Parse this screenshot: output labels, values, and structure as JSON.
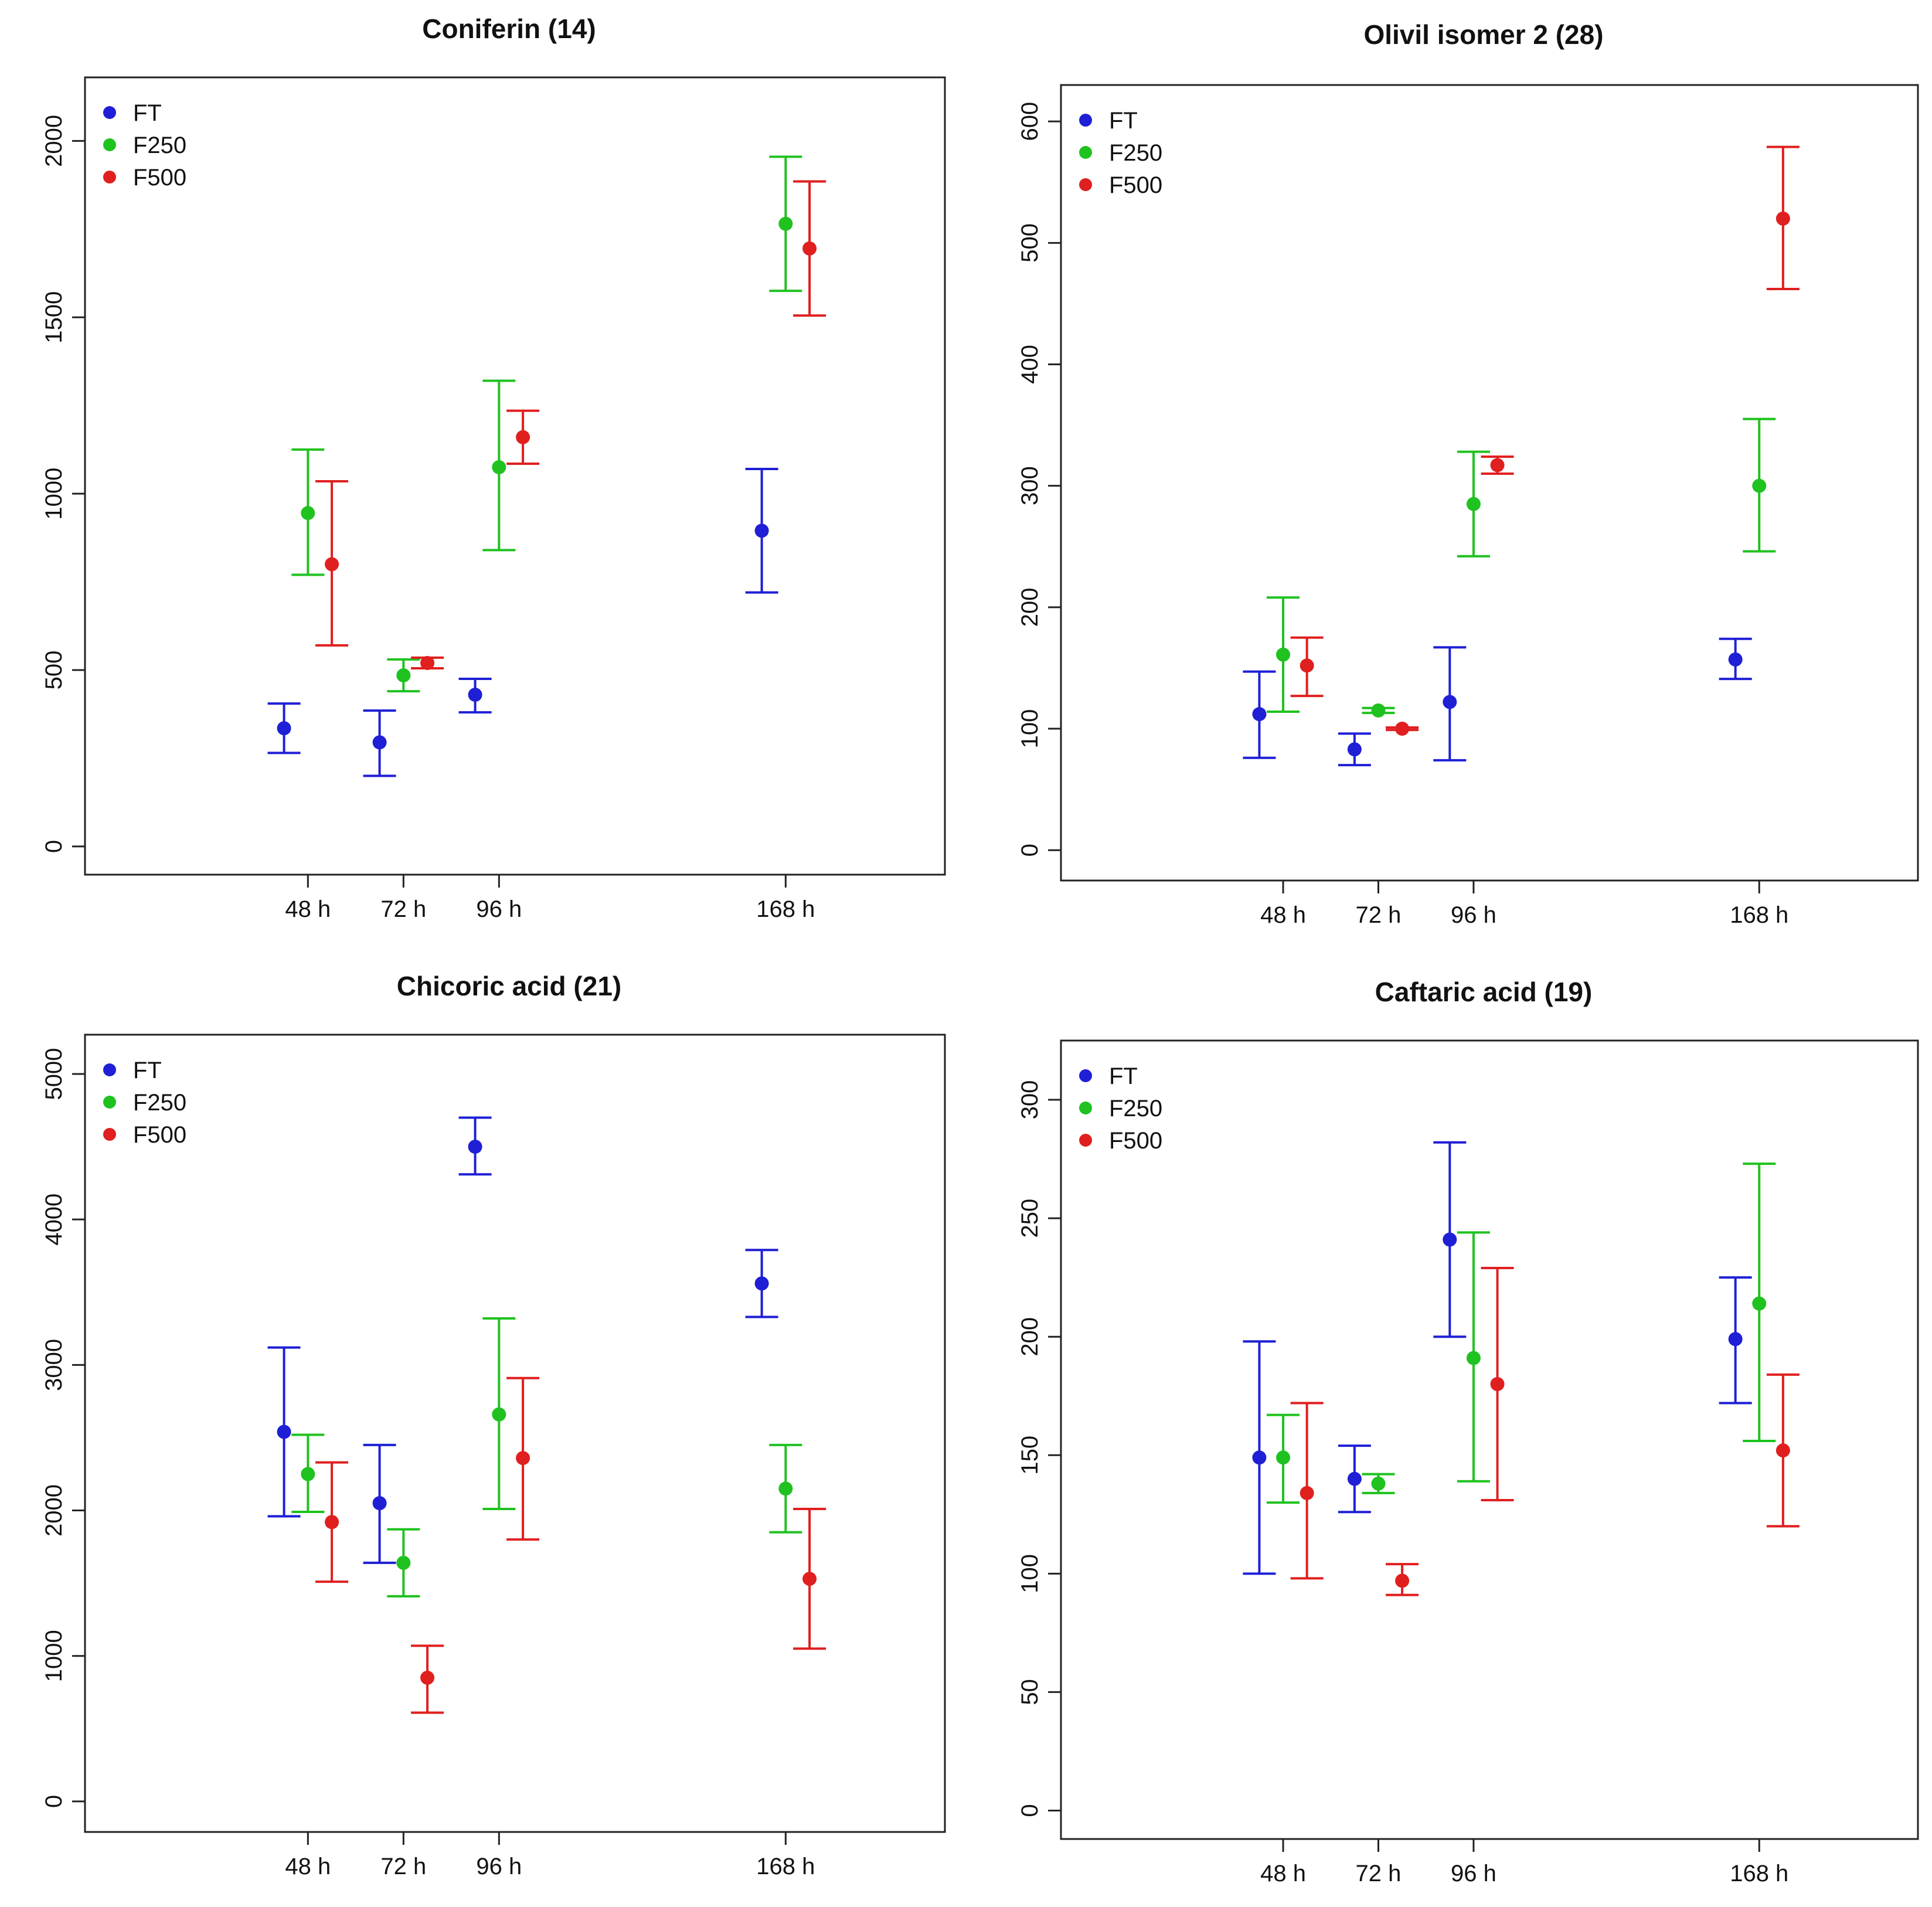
{
  "colors": {
    "FT": "#1f1fd6",
    "F250": "#1fc21f",
    "F500": "#e01f1f"
  },
  "chart_data": [
    {
      "type": "scatter",
      "title": "Coniferin (14)",
      "xlabel": "",
      "ylabel": "",
      "categories": [
        "48 h",
        "72 h",
        "96 h",
        "168 h"
      ],
      "x": [
        48,
        72,
        96,
        168
      ],
      "xlim": [
        -8,
        208
      ],
      "ylim": [
        -80,
        2180
      ],
      "yticks": [
        0,
        500,
        1000,
        1500,
        2000
      ],
      "legend": {
        "position": "top-left",
        "entries": [
          "FT",
          "F250",
          "F500"
        ]
      },
      "series": [
        {
          "name": "FT",
          "color": "#1f1fd6",
          "offset": -6,
          "values": [
            335,
            295,
            430,
            895
          ],
          "lower": [
            265,
            200,
            380,
            720
          ],
          "upper": [
            405,
            385,
            475,
            1070
          ]
        },
        {
          "name": "F250",
          "color": "#1fc21f",
          "offset": 0,
          "values": [
            945,
            485,
            1075,
            1765
          ],
          "lower": [
            770,
            440,
            840,
            1575
          ],
          "upper": [
            1125,
            530,
            1320,
            1955
          ]
        },
        {
          "name": "F500",
          "color": "#e01f1f",
          "offset": 6,
          "values": [
            800,
            520,
            1160,
            1695
          ],
          "lower": [
            570,
            505,
            1085,
            1505
          ],
          "upper": [
            1035,
            535,
            1235,
            1885
          ]
        }
      ]
    },
    {
      "type": "scatter",
      "title": "Olivil isomer 2 (28)",
      "xlabel": "",
      "ylabel": "",
      "categories": [
        "48 h",
        "72 h",
        "96 h",
        "168 h"
      ],
      "x": [
        48,
        72,
        96,
        168
      ],
      "xlim": [
        -8,
        208
      ],
      "ylim": [
        -25,
        630
      ],
      "yticks": [
        0,
        100,
        200,
        300,
        400,
        500,
        600
      ],
      "legend": {
        "position": "top-left",
        "entries": [
          "FT",
          "F250",
          "F500"
        ]
      },
      "series": [
        {
          "name": "FT",
          "color": "#1f1fd6",
          "offset": -6,
          "values": [
            112,
            83,
            122,
            157
          ],
          "lower": [
            76,
            70,
            74,
            141
          ],
          "upper": [
            147,
            96,
            167,
            174
          ]
        },
        {
          "name": "F250",
          "color": "#1fc21f",
          "offset": 0,
          "values": [
            161,
            115,
            285,
            300
          ],
          "lower": [
            114,
            113,
            242,
            246
          ],
          "upper": [
            208,
            117,
            328,
            355
          ]
        },
        {
          "name": "F500",
          "color": "#e01f1f",
          "offset": 6,
          "values": [
            152,
            100,
            317,
            520
          ],
          "lower": [
            127,
            99,
            310,
            462
          ],
          "upper": [
            175,
            101,
            324,
            579
          ]
        }
      ]
    },
    {
      "type": "scatter",
      "title": "Chicoric acid (21)",
      "xlabel": "",
      "ylabel": "",
      "categories": [
        "48 h",
        "72 h",
        "96 h",
        "168 h"
      ],
      "x": [
        48,
        72,
        96,
        168
      ],
      "xlim": [
        -8,
        208
      ],
      "ylim": [
        -210,
        5270
      ],
      "yticks": [
        0,
        1000,
        2000,
        3000,
        4000,
        5000
      ],
      "legend": {
        "position": "top-left",
        "entries": [
          "FT",
          "F250",
          "F500"
        ]
      },
      "series": [
        {
          "name": "FT",
          "color": "#1f1fd6",
          "offset": -6,
          "values": [
            2540,
            2050,
            4500,
            3560
          ],
          "lower": [
            1960,
            1640,
            4310,
            3330
          ],
          "upper": [
            3120,
            2450,
            4700,
            3790
          ]
        },
        {
          "name": "F250",
          "color": "#1fc21f",
          "offset": 0,
          "values": [
            2250,
            1640,
            2660,
            2150
          ],
          "lower": [
            1990,
            1410,
            2010,
            1850
          ],
          "upper": [
            2520,
            1870,
            3320,
            2450
          ]
        },
        {
          "name": "F500",
          "color": "#e01f1f",
          "offset": 6,
          "values": [
            1920,
            850,
            2360,
            1530
          ],
          "lower": [
            1510,
            610,
            1800,
            1050
          ],
          "upper": [
            2330,
            1070,
            2910,
            2010
          ]
        }
      ]
    },
    {
      "type": "scatter",
      "title": "Caftaric acid (19)",
      "xlabel": "",
      "ylabel": "",
      "categories": [
        "48 h",
        "72 h",
        "96 h",
        "168 h"
      ],
      "x": [
        48,
        72,
        96,
        168
      ],
      "xlim": [
        -8,
        208
      ],
      "ylim": [
        -12,
        325
      ],
      "yticks": [
        0,
        50,
        100,
        150,
        200,
        250,
        300
      ],
      "legend": {
        "position": "top-left",
        "entries": [
          "FT",
          "F250",
          "F500"
        ]
      },
      "series": [
        {
          "name": "FT",
          "color": "#1f1fd6",
          "offset": -6,
          "values": [
            149,
            140,
            241,
            199
          ],
          "lower": [
            100,
            126,
            200,
            172
          ],
          "upper": [
            198,
            154,
            282,
            225
          ]
        },
        {
          "name": "F250",
          "color": "#1fc21f",
          "offset": 0,
          "values": [
            149,
            138,
            191,
            214
          ],
          "lower": [
            130,
            134,
            139,
            156
          ],
          "upper": [
            167,
            142,
            244,
            273
          ]
        },
        {
          "name": "F500",
          "color": "#e01f1f",
          "offset": 6,
          "values": [
            134,
            97,
            180,
            152
          ],
          "lower": [
            98,
            91,
            131,
            120
          ],
          "upper": [
            172,
            104,
            229,
            184
          ]
        }
      ]
    }
  ]
}
